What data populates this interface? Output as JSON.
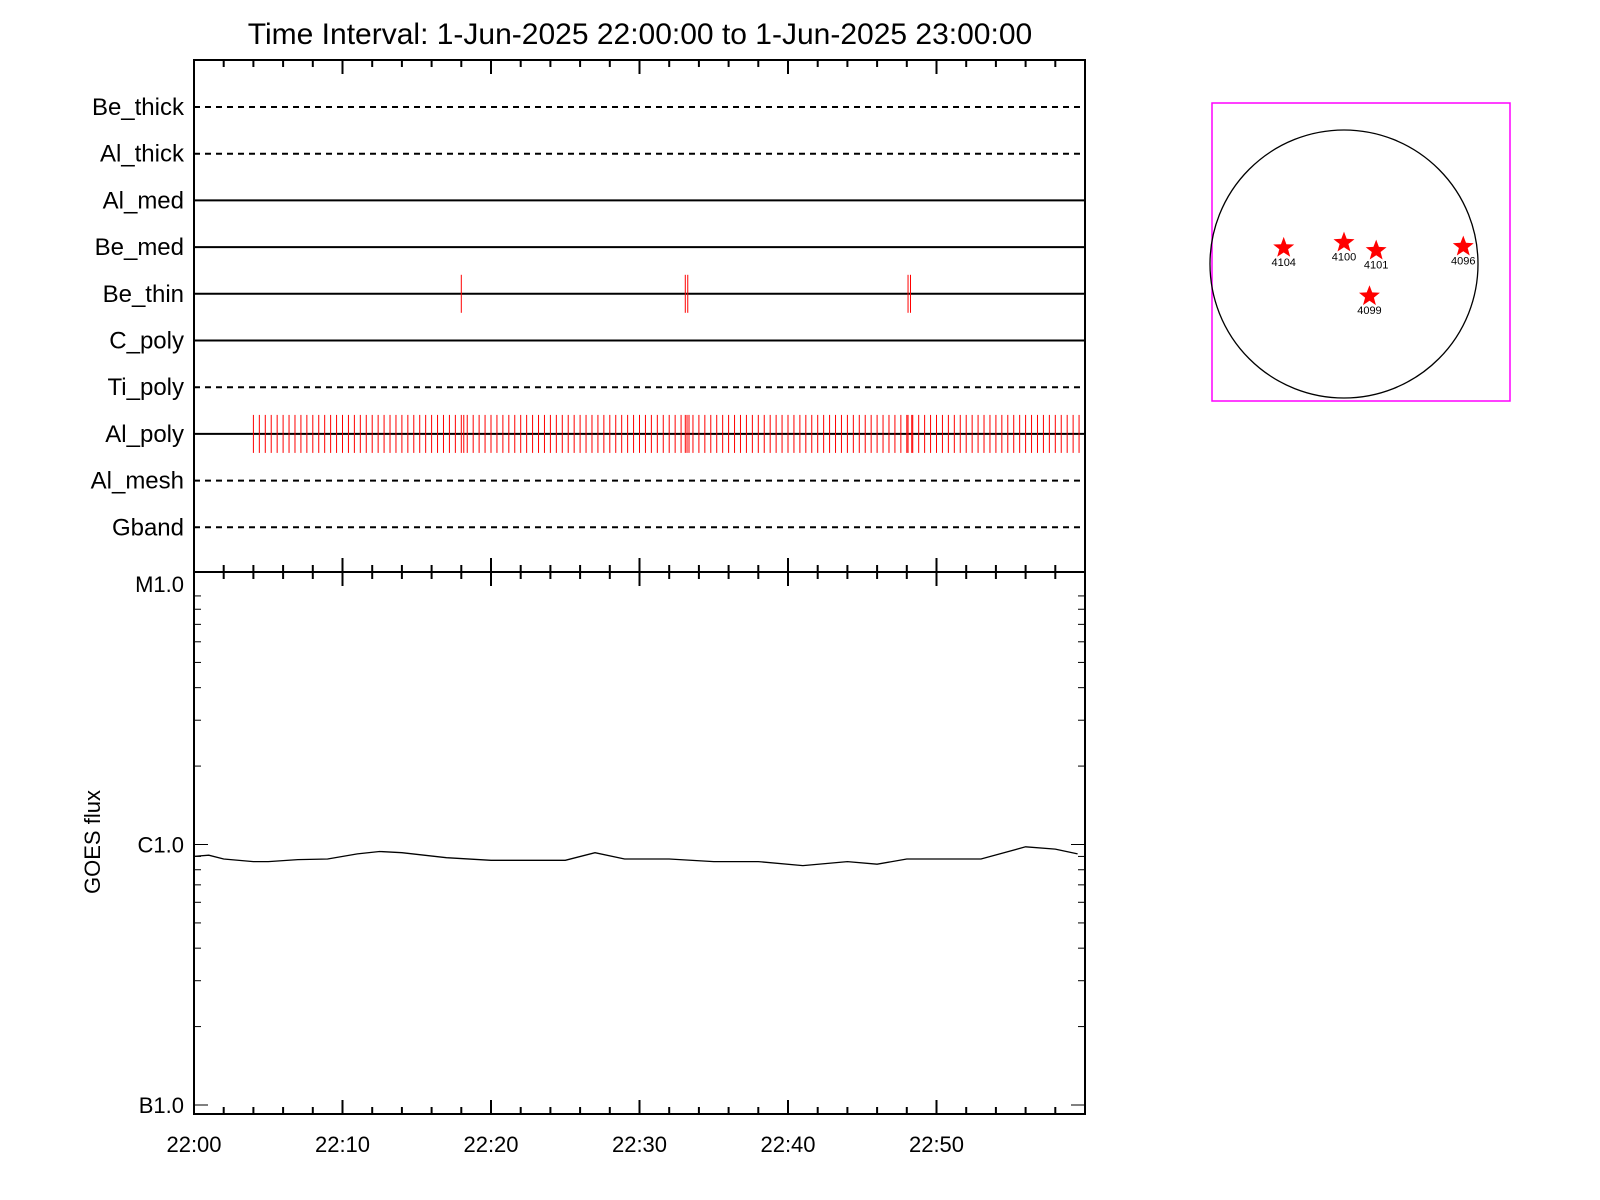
{
  "title": "Time Interval:  1-Jun-2025 22:00:00 to  1-Jun-2025 23:00:00",
  "colors": {
    "axes": "#000000",
    "events": "#ff0000",
    "frame": "#ff00ff"
  },
  "chart_data": [
    {
      "type": "timeline",
      "x_range": [
        "22:00",
        "23:00"
      ],
      "rows": [
        {
          "label": "Be_thick",
          "style": "dashed",
          "events": []
        },
        {
          "label": "Al_thick",
          "style": "dashed",
          "events": []
        },
        {
          "label": "Al_med",
          "style": "solid",
          "events": []
        },
        {
          "label": "Be_med",
          "style": "solid",
          "events": []
        },
        {
          "label": "Be_thin",
          "style": "solid",
          "events": [
            "22:18:00",
            "22:33:05",
            "22:33:15",
            "22:48:05",
            "22:48:15"
          ]
        },
        {
          "label": "C_poly",
          "style": "solid",
          "events": []
        },
        {
          "label": "Ti_poly",
          "style": "dashed",
          "events": []
        },
        {
          "label": "Al_poly",
          "style": "solid",
          "events_regular": {
            "start": "22:04:00",
            "end": "22:59:36",
            "step_s": 24
          },
          "events": [
            "22:18:10",
            "22:33:05",
            "22:33:20",
            "22:48:05",
            "22:48:20"
          ]
        },
        {
          "label": "Al_mesh",
          "style": "dashed",
          "events": []
        },
        {
          "label": "Gband",
          "style": "dashed",
          "events": []
        }
      ]
    },
    {
      "type": "line",
      "ylabel": "GOES flux",
      "yscale": "log",
      "ylim": [
        1e-07,
        1e-05
      ],
      "yticks": [
        {
          "label": "M1.0",
          "value": 1e-05
        },
        {
          "label": "C1.0",
          "value": 1e-06
        },
        {
          "label": "B1.0",
          "value": 1e-07
        }
      ],
      "xlim": [
        "22:00",
        "23:00"
      ],
      "xticks": [
        "22:00",
        "22:10",
        "22:20",
        "22:30",
        "22:40",
        "22:50"
      ],
      "series": [
        {
          "values": [
            [
              "22:00",
              9e-07
            ],
            [
              "22:01",
              9.1e-07
            ],
            [
              "22:02",
              8.8e-07
            ],
            [
              "22:04",
              8.6e-07
            ],
            [
              "22:05",
              8.6e-07
            ],
            [
              "22:07",
              8.75e-07
            ],
            [
              "22:09",
              8.8e-07
            ],
            [
              "22:11",
              9.2e-07
            ],
            [
              "22:12.5",
              9.4e-07
            ],
            [
              "22:14",
              9.3e-07
            ],
            [
              "22:17",
              8.9e-07
            ],
            [
              "22:20",
              8.7e-07
            ],
            [
              "22:25",
              8.7e-07
            ],
            [
              "22:27",
              9.3e-07
            ],
            [
              "22:29",
              8.8e-07
            ],
            [
              "22:32",
              8.8e-07
            ],
            [
              "22:35",
              8.6e-07
            ],
            [
              "22:38",
              8.6e-07
            ],
            [
              "22:41",
              8.3e-07
            ],
            [
              "22:44",
              8.6e-07
            ],
            [
              "22:46",
              8.4e-07
            ],
            [
              "22:48",
              8.8e-07
            ],
            [
              "22:53",
              8.8e-07
            ],
            [
              "22:56",
              9.8e-07
            ],
            [
              "22:58",
              9.6e-07
            ],
            [
              "22:59.5",
              9.2e-07
            ]
          ]
        }
      ]
    }
  ],
  "disk": {
    "regions": [
      {
        "label": "4104",
        "fx": -0.45,
        "fy": 0.12
      },
      {
        "label": "4100",
        "fx": 0.0,
        "fy": 0.16
      },
      {
        "label": "4101",
        "fx": 0.24,
        "fy": 0.1
      },
      {
        "label": "4096",
        "fx": 0.89,
        "fy": 0.13
      },
      {
        "label": "4099",
        "fx": 0.19,
        "fy": -0.24
      }
    ]
  }
}
